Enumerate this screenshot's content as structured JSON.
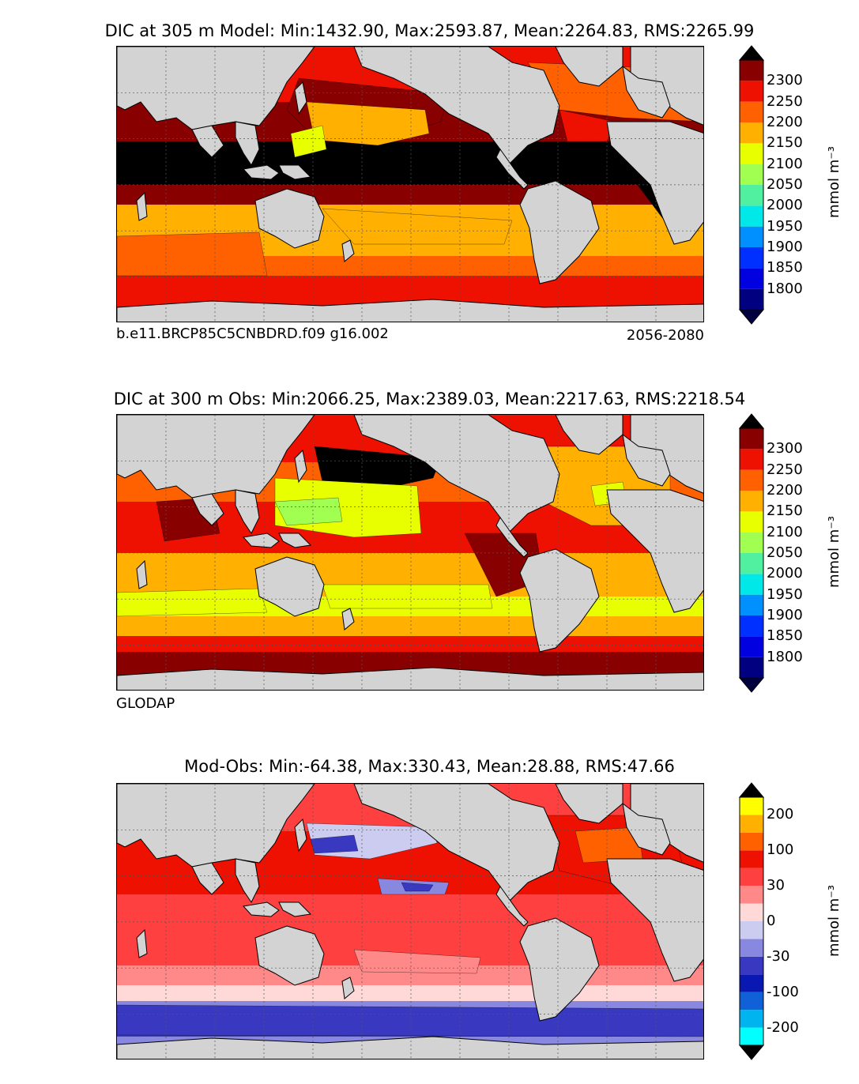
{
  "panels": [
    {
      "id": "model",
      "title": "DIC at 305 m Model: Min:1432.90, Max:2593.87, Mean:2264.83, RMS:2265.99",
      "footer_left": "b.e11.BRCP85C5CNBDRD.f09 g16.002",
      "footer_right": "2056-2080",
      "colorbar_unit": "mmol m⁻³",
      "colorbar_ticks": [
        "1800",
        "1850",
        "1900",
        "1950",
        "2000",
        "2050",
        "2100",
        "2150",
        "2200",
        "2250",
        "2300"
      ]
    },
    {
      "id": "obs",
      "title": "DIC at 300 m Obs: Min:2066.25, Max:2389.03, Mean:2217.63, RMS:2218.54",
      "footer_left": "GLODAP",
      "footer_right": "",
      "colorbar_unit": "mmol m⁻³",
      "colorbar_ticks": [
        "1800",
        "1850",
        "1900",
        "1950",
        "2000",
        "2050",
        "2100",
        "2150",
        "2200",
        "2250",
        "2300"
      ]
    },
    {
      "id": "diff",
      "title": "Mod-Obs: Min:-64.38, Max:330.43, Mean:28.88, RMS:47.66",
      "footer_left": "",
      "footer_right": "",
      "colorbar_unit": "mmol m⁻³",
      "colorbar_ticks": [
        "-200",
        "-100",
        "-30",
        "0",
        "30",
        "100",
        "200"
      ]
    }
  ],
  "colors": {
    "dic_levels": [
      "#000080",
      "#0000e0",
      "#0030ff",
      "#0090ff",
      "#00e8e8",
      "#50f0a0",
      "#a0ff50",
      "#e8ff00",
      "#ffb000",
      "#ff6000",
      "#ee1000",
      "#880000"
    ],
    "dic_extend_low": "#000040",
    "dic_extend_high": "#000000",
    "diff_levels": [
      "#00ffff",
      "#00b4f0",
      "#1060d8",
      "#0818b0",
      "#3838c0",
      "#8888e0",
      "#ccccf0",
      "#ffd8d8",
      "#ff8888",
      "#ff4040",
      "#ee1000",
      "#ff6000",
      "#ffb000",
      "#ffff00"
    ],
    "diff_extend_low": "#000000",
    "diff_extend_high": "#000000",
    "land": "#d3d3d3"
  },
  "chart_data": [
    {
      "type": "heatmap",
      "title": "DIC at 305 m Model: Min:1432.90, Max:2593.87, Mean:2264.83, RMS:2265.99",
      "variable": "Dissolved Inorganic Carbon at 305 m (model)",
      "units": "mmol m^-3",
      "stats": {
        "min": 1432.9,
        "max": 2593.87,
        "mean": 2264.83,
        "rms": 2265.99
      },
      "colorbar_levels": [
        1775,
        1800,
        1825,
        1850,
        1875,
        1900,
        1925,
        1950,
        1975,
        2000,
        2025,
        2050,
        2075,
        2100,
        2125,
        2150,
        2175,
        2200,
        2225,
        2250,
        2275,
        2300,
        2325
      ],
      "colorbar_ticks": [
        1800,
        1850,
        1900,
        1950,
        2000,
        2050,
        2100,
        2150,
        2200,
        2250,
        2300
      ],
      "extend": "both",
      "case": "b.e11.BRCP85C5CNBDRD.f09 g16.002",
      "period": "2056-2080"
    },
    {
      "type": "heatmap",
      "title": "DIC at 300 m Obs: Min:2066.25, Max:2389.03, Mean:2217.63, RMS:2218.54",
      "variable": "Dissolved Inorganic Carbon at 300 m (observations)",
      "units": "mmol m^-3",
      "stats": {
        "min": 2066.25,
        "max": 2389.03,
        "mean": 2217.63,
        "rms": 2218.54
      },
      "colorbar_ticks": [
        1800,
        1850,
        1900,
        1950,
        2000,
        2050,
        2100,
        2150,
        2200,
        2250,
        2300
      ],
      "extend": "both",
      "source": "GLODAP"
    },
    {
      "type": "heatmap",
      "title": "Mod-Obs: Min:-64.38, Max:330.43, Mean:28.88, RMS:47.66",
      "variable": "DIC difference (model minus observations)",
      "units": "mmol m^-3",
      "stats": {
        "min": -64.38,
        "max": 330.43,
        "mean": 28.88,
        "rms": 47.66
      },
      "colorbar_ticks": [
        -200,
        -100,
        -30,
        0,
        30,
        100,
        200
      ],
      "extend": "both"
    }
  ]
}
